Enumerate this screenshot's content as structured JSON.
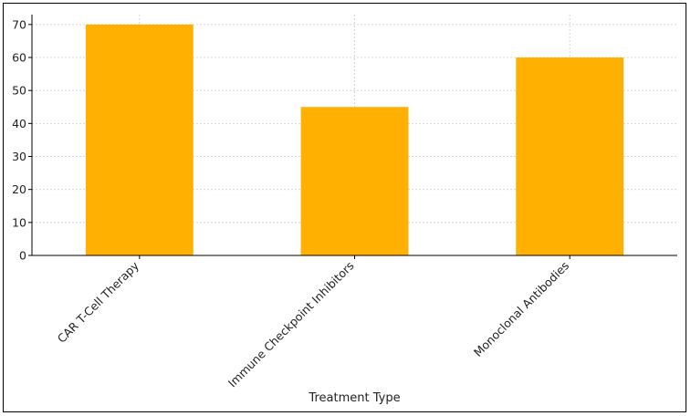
{
  "chart_data": {
    "type": "bar",
    "title": "",
    "xlabel": "Treatment Type",
    "ylabel": "",
    "categories": [
      "CAR T-Cell Therapy",
      "Immune Checkpoint Inhibitors",
      "Monoclonal Antibodies"
    ],
    "values": [
      70,
      45,
      60
    ],
    "ylim": [
      0,
      73
    ],
    "yticks": [
      0,
      10,
      20,
      30,
      40,
      50,
      60,
      70
    ],
    "grid": true,
    "legend": "none",
    "bar_color": "#FFB000",
    "grid_color": "#cccccc"
  }
}
